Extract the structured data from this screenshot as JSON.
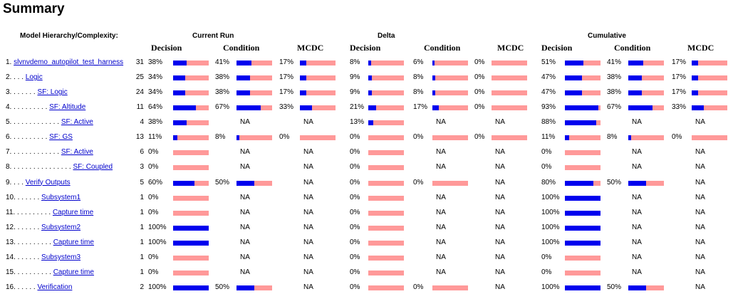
{
  "header": {
    "title": "Summary"
  },
  "table": {
    "hierarchy_header": "Model Hierarchy/Complexity:",
    "groups": [
      {
        "name": "Current Run",
        "columns": [
          "Decision",
          "Condition",
          "MCDC"
        ]
      },
      {
        "name": "Delta",
        "columns": [
          "Decision",
          "Condition",
          "MCDC"
        ]
      },
      {
        "name": "Cumulative",
        "columns": [
          "Decision",
          "Condition",
          "MCDC"
        ]
      }
    ],
    "rows": [
      {
        "prefix": "1. ",
        "name": "slvnvdemo_autopilot_test_harness",
        "complexity": 31,
        "cells": [
          {
            "value": 38,
            "label": "38%"
          },
          {
            "value": 41,
            "label": "41%"
          },
          {
            "value": 17,
            "label": "17%"
          },
          {
            "value": 8,
            "label": "8%"
          },
          {
            "value": 6,
            "label": "6%"
          },
          {
            "value": 0,
            "label": "0%"
          },
          {
            "value": 51,
            "label": "51%"
          },
          {
            "value": 41,
            "label": "41%"
          },
          {
            "value": 17,
            "label": "17%"
          }
        ]
      },
      {
        "prefix": "2. . . . ",
        "name": "Logic",
        "complexity": 25,
        "cells": [
          {
            "value": 34,
            "label": "34%"
          },
          {
            "value": 38,
            "label": "38%"
          },
          {
            "value": 17,
            "label": "17%"
          },
          {
            "value": 9,
            "label": "9%"
          },
          {
            "value": 8,
            "label": "8%"
          },
          {
            "value": 0,
            "label": "0%"
          },
          {
            "value": 47,
            "label": "47%"
          },
          {
            "value": 38,
            "label": "38%"
          },
          {
            "value": 17,
            "label": "17%"
          }
        ]
      },
      {
        "prefix": "3. . . . . . . ",
        "name": "SF: Logic",
        "complexity": 24,
        "cells": [
          {
            "value": 34,
            "label": "34%"
          },
          {
            "value": 38,
            "label": "38%"
          },
          {
            "value": 17,
            "label": "17%"
          },
          {
            "value": 9,
            "label": "9%"
          },
          {
            "value": 8,
            "label": "8%"
          },
          {
            "value": 0,
            "label": "0%"
          },
          {
            "value": 47,
            "label": "47%"
          },
          {
            "value": 38,
            "label": "38%"
          },
          {
            "value": 17,
            "label": "17%"
          }
        ]
      },
      {
        "prefix": "4. . . . . . . . . . ",
        "name": "SF: Altitude",
        "complexity": 11,
        "cells": [
          {
            "value": 64,
            "label": "64%"
          },
          {
            "value": 67,
            "label": "67%"
          },
          {
            "value": 33,
            "label": "33%"
          },
          {
            "value": 21,
            "label": "21%"
          },
          {
            "value": 17,
            "label": "17%"
          },
          {
            "value": 0,
            "label": "0%"
          },
          {
            "value": 93,
            "label": "93%"
          },
          {
            "value": 67,
            "label": "67%"
          },
          {
            "value": 33,
            "label": "33%"
          }
        ]
      },
      {
        "prefix": "5. . . . . . . . . . . . . ",
        "name": "SF: Active",
        "complexity": 4,
        "cells": [
          {
            "value": 38,
            "label": "38%"
          },
          "NA",
          "NA",
          {
            "value": 13,
            "label": "13%"
          },
          "NA",
          "NA",
          {
            "value": 88,
            "label": "88%"
          },
          "NA",
          "NA"
        ]
      },
      {
        "prefix": "6. . . . . . . . . . ",
        "name": "SF: GS",
        "complexity": 13,
        "cells": [
          {
            "value": 11,
            "label": "11%"
          },
          {
            "value": 8,
            "label": "8%"
          },
          {
            "value": 0,
            "label": "0%"
          },
          {
            "value": 0,
            "label": "0%"
          },
          {
            "value": 0,
            "label": "0%"
          },
          {
            "value": 0,
            "label": "0%"
          },
          {
            "value": 11,
            "label": "11%"
          },
          {
            "value": 8,
            "label": "8%"
          },
          {
            "value": 0,
            "label": "0%"
          }
        ]
      },
      {
        "prefix": "7. . . . . . . . . . . . . ",
        "name": "SF: Active",
        "complexity": 6,
        "cells": [
          {
            "value": 0,
            "label": "0%"
          },
          "NA",
          "NA",
          {
            "value": 0,
            "label": "0%"
          },
          "NA",
          "NA",
          {
            "value": 0,
            "label": "0%"
          },
          "NA",
          "NA"
        ]
      },
      {
        "prefix": "8. . . . . . . . . . . . . . . . ",
        "name": "SF: Coupled",
        "complexity": 3,
        "cells": [
          {
            "value": 0,
            "label": "0%"
          },
          "NA",
          "NA",
          {
            "value": 0,
            "label": "0%"
          },
          "NA",
          "NA",
          {
            "value": 0,
            "label": "0%"
          },
          "NA",
          "NA"
        ]
      },
      {
        "prefix": "9. . . . ",
        "name": "Verify Outputs",
        "complexity": 5,
        "cells": [
          {
            "value": 60,
            "label": "60%"
          },
          {
            "value": 50,
            "label": "50%"
          },
          "NA",
          {
            "value": 0,
            "label": "0%"
          },
          {
            "value": 0,
            "label": "0%"
          },
          "NA",
          {
            "value": 80,
            "label": "80%"
          },
          {
            "value": 50,
            "label": "50%"
          },
          "NA"
        ]
      },
      {
        "prefix": "10. . . . . . . ",
        "name": "Subsystem1",
        "complexity": 1,
        "cells": [
          {
            "value": 0,
            "label": "0%"
          },
          "NA",
          "NA",
          {
            "value": 0,
            "label": "0%"
          },
          "NA",
          "NA",
          {
            "value": 100,
            "label": "100%"
          },
          "NA",
          "NA"
        ]
      },
      {
        "prefix": "11. . . . . . . . . . ",
        "name": "Capture time",
        "complexity": 1,
        "cells": [
          {
            "value": 0,
            "label": "0%"
          },
          "NA",
          "NA",
          {
            "value": 0,
            "label": "0%"
          },
          "NA",
          "NA",
          {
            "value": 100,
            "label": "100%"
          },
          "NA",
          "NA"
        ]
      },
      {
        "prefix": "12. . . . . . . ",
        "name": "Subsystem2",
        "complexity": 1,
        "cells": [
          {
            "value": 100,
            "label": "100%"
          },
          "NA",
          "NA",
          {
            "value": 0,
            "label": "0%"
          },
          "NA",
          "NA",
          {
            "value": 100,
            "label": "100%"
          },
          "NA",
          "NA"
        ]
      },
      {
        "prefix": "13. . . . . . . . . . ",
        "name": "Capture time",
        "complexity": 1,
        "cells": [
          {
            "value": 100,
            "label": "100%"
          },
          "NA",
          "NA",
          {
            "value": 0,
            "label": "0%"
          },
          "NA",
          "NA",
          {
            "value": 100,
            "label": "100%"
          },
          "NA",
          "NA"
        ]
      },
      {
        "prefix": "14. . . . . . . ",
        "name": "Subsystem3",
        "complexity": 1,
        "cells": [
          {
            "value": 0,
            "label": "0%"
          },
          "NA",
          "NA",
          {
            "value": 0,
            "label": "0%"
          },
          "NA",
          "NA",
          {
            "value": 0,
            "label": "0%"
          },
          "NA",
          "NA"
        ]
      },
      {
        "prefix": "15. . . . . . . . . . ",
        "name": "Capture time",
        "complexity": 1,
        "cells": [
          {
            "value": 0,
            "label": "0%"
          },
          "NA",
          "NA",
          {
            "value": 0,
            "label": "0%"
          },
          "NA",
          "NA",
          {
            "value": 0,
            "label": "0%"
          },
          "NA",
          "NA"
        ]
      },
      {
        "prefix": "16. . . . . . ",
        "name": "Verification",
        "complexity": 2,
        "cells": [
          {
            "value": 100,
            "label": "100%"
          },
          {
            "value": 50,
            "label": "50%"
          },
          "NA",
          {
            "value": 0,
            "label": "0%"
          },
          {
            "value": 0,
            "label": "0%"
          },
          "NA",
          {
            "value": 100,
            "label": "100%"
          },
          {
            "value": 50,
            "label": "50%"
          },
          "NA"
        ]
      }
    ]
  }
}
